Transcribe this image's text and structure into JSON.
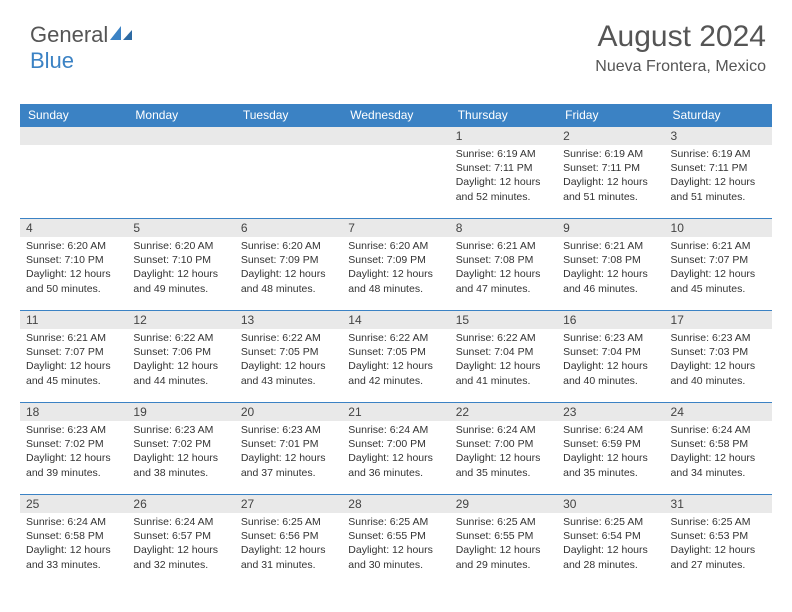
{
  "logo": {
    "text_1": "General",
    "text_2": "Blue"
  },
  "header": {
    "month_title": "August 2024",
    "location": "Nueva Frontera, Mexico"
  },
  "colors": {
    "header_bg": "#3b82c4",
    "header_text": "#ffffff",
    "daynum_bg": "#e9e9e9",
    "border": "#3b82c4",
    "text": "#333333",
    "logo_gray": "#555555",
    "logo_blue": "#3b82c4"
  },
  "day_headers": [
    "Sunday",
    "Monday",
    "Tuesday",
    "Wednesday",
    "Thursday",
    "Friday",
    "Saturday"
  ],
  "labels": {
    "sunrise": "Sunrise:",
    "sunset": "Sunset:",
    "daylight": "Daylight:"
  },
  "weeks": [
    [
      {
        "empty": true
      },
      {
        "empty": true
      },
      {
        "empty": true
      },
      {
        "empty": true
      },
      {
        "num": "1",
        "sunrise": "6:19 AM",
        "sunset": "7:11 PM",
        "daylight": "12 hours and 52 minutes."
      },
      {
        "num": "2",
        "sunrise": "6:19 AM",
        "sunset": "7:11 PM",
        "daylight": "12 hours and 51 minutes."
      },
      {
        "num": "3",
        "sunrise": "6:19 AM",
        "sunset": "7:11 PM",
        "daylight": "12 hours and 51 minutes."
      }
    ],
    [
      {
        "num": "4",
        "sunrise": "6:20 AM",
        "sunset": "7:10 PM",
        "daylight": "12 hours and 50 minutes."
      },
      {
        "num": "5",
        "sunrise": "6:20 AM",
        "sunset": "7:10 PM",
        "daylight": "12 hours and 49 minutes."
      },
      {
        "num": "6",
        "sunrise": "6:20 AM",
        "sunset": "7:09 PM",
        "daylight": "12 hours and 48 minutes."
      },
      {
        "num": "7",
        "sunrise": "6:20 AM",
        "sunset": "7:09 PM",
        "daylight": "12 hours and 48 minutes."
      },
      {
        "num": "8",
        "sunrise": "6:21 AM",
        "sunset": "7:08 PM",
        "daylight": "12 hours and 47 minutes."
      },
      {
        "num": "9",
        "sunrise": "6:21 AM",
        "sunset": "7:08 PM",
        "daylight": "12 hours and 46 minutes."
      },
      {
        "num": "10",
        "sunrise": "6:21 AM",
        "sunset": "7:07 PM",
        "daylight": "12 hours and 45 minutes."
      }
    ],
    [
      {
        "num": "11",
        "sunrise": "6:21 AM",
        "sunset": "7:07 PM",
        "daylight": "12 hours and 45 minutes."
      },
      {
        "num": "12",
        "sunrise": "6:22 AM",
        "sunset": "7:06 PM",
        "daylight": "12 hours and 44 minutes."
      },
      {
        "num": "13",
        "sunrise": "6:22 AM",
        "sunset": "7:05 PM",
        "daylight": "12 hours and 43 minutes."
      },
      {
        "num": "14",
        "sunrise": "6:22 AM",
        "sunset": "7:05 PM",
        "daylight": "12 hours and 42 minutes."
      },
      {
        "num": "15",
        "sunrise": "6:22 AM",
        "sunset": "7:04 PM",
        "daylight": "12 hours and 41 minutes."
      },
      {
        "num": "16",
        "sunrise": "6:23 AM",
        "sunset": "7:04 PM",
        "daylight": "12 hours and 40 minutes."
      },
      {
        "num": "17",
        "sunrise": "6:23 AM",
        "sunset": "7:03 PM",
        "daylight": "12 hours and 40 minutes."
      }
    ],
    [
      {
        "num": "18",
        "sunrise": "6:23 AM",
        "sunset": "7:02 PM",
        "daylight": "12 hours and 39 minutes."
      },
      {
        "num": "19",
        "sunrise": "6:23 AM",
        "sunset": "7:02 PM",
        "daylight": "12 hours and 38 minutes."
      },
      {
        "num": "20",
        "sunrise": "6:23 AM",
        "sunset": "7:01 PM",
        "daylight": "12 hours and 37 minutes."
      },
      {
        "num": "21",
        "sunrise": "6:24 AM",
        "sunset": "7:00 PM",
        "daylight": "12 hours and 36 minutes."
      },
      {
        "num": "22",
        "sunrise": "6:24 AM",
        "sunset": "7:00 PM",
        "daylight": "12 hours and 35 minutes."
      },
      {
        "num": "23",
        "sunrise": "6:24 AM",
        "sunset": "6:59 PM",
        "daylight": "12 hours and 35 minutes."
      },
      {
        "num": "24",
        "sunrise": "6:24 AM",
        "sunset": "6:58 PM",
        "daylight": "12 hours and 34 minutes."
      }
    ],
    [
      {
        "num": "25",
        "sunrise": "6:24 AM",
        "sunset": "6:58 PM",
        "daylight": "12 hours and 33 minutes."
      },
      {
        "num": "26",
        "sunrise": "6:24 AM",
        "sunset": "6:57 PM",
        "daylight": "12 hours and 32 minutes."
      },
      {
        "num": "27",
        "sunrise": "6:25 AM",
        "sunset": "6:56 PM",
        "daylight": "12 hours and 31 minutes."
      },
      {
        "num": "28",
        "sunrise": "6:25 AM",
        "sunset": "6:55 PM",
        "daylight": "12 hours and 30 minutes."
      },
      {
        "num": "29",
        "sunrise": "6:25 AM",
        "sunset": "6:55 PM",
        "daylight": "12 hours and 29 minutes."
      },
      {
        "num": "30",
        "sunrise": "6:25 AM",
        "sunset": "6:54 PM",
        "daylight": "12 hours and 28 minutes."
      },
      {
        "num": "31",
        "sunrise": "6:25 AM",
        "sunset": "6:53 PM",
        "daylight": "12 hours and 27 minutes."
      }
    ]
  ]
}
